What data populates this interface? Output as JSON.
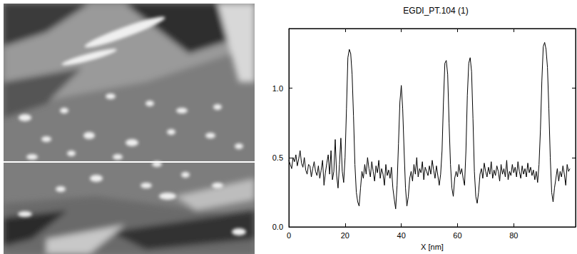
{
  "chart_data": {
    "type": "line",
    "title": "EGDI_PT.104 (1)",
    "xlabel": "X [nm]",
    "x": [
      0,
      0.5,
      1,
      1.5,
      2,
      2.5,
      3,
      3.5,
      4,
      4.5,
      5,
      5.5,
      6,
      6.5,
      7,
      7.5,
      8,
      8.5,
      9,
      9.5,
      10,
      10.5,
      11,
      11.5,
      12,
      12.5,
      13,
      13.5,
      14,
      14.5,
      15,
      15.5,
      16,
      16.5,
      17,
      17.5,
      18,
      18.5,
      19,
      19.5,
      20,
      20.5,
      21,
      21.5,
      22,
      22.5,
      23,
      23.5,
      24,
      24.5,
      25,
      25.5,
      26,
      26.5,
      27,
      27.5,
      28,
      28.5,
      29,
      29.5,
      30,
      30.5,
      31,
      31.5,
      32,
      32.5,
      33,
      33.5,
      34,
      34.5,
      35,
      35.5,
      36,
      36.5,
      37,
      37.5,
      38,
      38.5,
      39,
      39.5,
      40,
      40.5,
      41,
      41.5,
      42,
      42.5,
      43,
      43.5,
      44,
      44.5,
      45,
      45.5,
      46,
      46.5,
      47,
      47.5,
      48,
      48.5,
      49,
      49.5,
      50,
      50.5,
      51,
      51.5,
      52,
      52.5,
      53,
      53.5,
      54,
      54.5,
      55,
      55.5,
      56,
      56.5,
      57,
      57.5,
      58,
      58.5,
      59,
      59.5,
      60,
      60.5,
      61,
      61.5,
      62,
      62.5,
      63,
      63.5,
      64,
      64.5,
      65,
      65.5,
      66,
      66.5,
      67,
      67.5,
      68,
      68.5,
      69,
      69.5,
      70,
      70.5,
      71,
      71.5,
      72,
      72.5,
      73,
      73.5,
      74,
      74.5,
      75,
      75.5,
      76,
      76.5,
      77,
      77.5,
      78,
      78.5,
      79,
      79.5,
      80,
      80.5,
      81,
      81.5,
      82,
      82.5,
      83,
      83.5,
      84,
      84.5,
      85,
      85.5,
      86,
      86.5,
      87,
      87.5,
      88,
      88.5,
      89,
      89.5,
      90,
      90.5,
      91,
      91.5,
      92,
      92.5,
      93,
      93.5,
      94,
      94.5,
      95,
      95.5,
      96,
      96.5,
      97,
      97.5,
      98,
      98.5,
      99,
      99.5,
      100
    ],
    "values": [
      0.48,
      0.45,
      0.42,
      0.5,
      0.47,
      0.52,
      0.44,
      0.49,
      0.55,
      0.46,
      0.43,
      0.5,
      0.41,
      0.38,
      0.45,
      0.44,
      0.36,
      0.42,
      0.47,
      0.4,
      0.37,
      0.44,
      0.35,
      0.41,
      0.48,
      0.3,
      0.39,
      0.46,
      0.52,
      0.38,
      0.55,
      0.34,
      0.4,
      0.63,
      0.37,
      0.28,
      0.45,
      0.64,
      0.4,
      0.32,
      0.5,
      0.85,
      1.22,
      1.28,
      1.25,
      1.1,
      0.8,
      0.45,
      0.25,
      0.18,
      0.15,
      0.28,
      0.4,
      0.35,
      0.45,
      0.38,
      0.5,
      0.42,
      0.36,
      0.47,
      0.4,
      0.33,
      0.44,
      0.39,
      0.48,
      0.35,
      0.42,
      0.38,
      0.3,
      0.45,
      0.37,
      0.41,
      0.35,
      0.43,
      0.28,
      0.2,
      0.13,
      0.3,
      0.6,
      0.9,
      1.02,
      0.85,
      0.55,
      0.28,
      0.15,
      0.22,
      0.35,
      0.4,
      0.33,
      0.45,
      0.38,
      0.5,
      0.36,
      0.42,
      0.39,
      0.47,
      0.34,
      0.43,
      0.4,
      0.37,
      0.44,
      0.38,
      0.48,
      0.41,
      0.35,
      0.44,
      0.37,
      0.3,
      0.38,
      0.55,
      0.9,
      1.18,
      1.2,
      1.1,
      0.75,
      0.45,
      0.28,
      0.22,
      0.35,
      0.4,
      0.36,
      0.45,
      0.38,
      0.42,
      0.35,
      0.3,
      0.55,
      0.95,
      1.18,
      1.22,
      1.12,
      0.78,
      0.4,
      0.22,
      0.17,
      0.25,
      0.38,
      0.42,
      0.35,
      0.46,
      0.4,
      0.36,
      0.43,
      0.38,
      0.47,
      0.35,
      0.41,
      0.37,
      0.44,
      0.4,
      0.33,
      0.45,
      0.38,
      0.42,
      0.36,
      0.48,
      0.34,
      0.4,
      0.37,
      0.45,
      0.39,
      0.43,
      0.36,
      0.47,
      0.4,
      0.35,
      0.44,
      0.38,
      0.42,
      0.36,
      0.46,
      0.39,
      0.43,
      0.37,
      0.41,
      0.34,
      0.4,
      0.32,
      0.45,
      0.7,
      1.05,
      1.3,
      1.33,
      1.28,
      1.15,
      0.85,
      0.5,
      0.25,
      0.18,
      0.28,
      0.35,
      0.42,
      0.33,
      0.4,
      0.36,
      0.44,
      0.38,
      0.3,
      0.45,
      0.4,
      0.42
    ],
    "xlim": [
      0,
      102
    ],
    "ylim": [
      0,
      1.43
    ],
    "xticks": [
      0,
      20,
      40,
      60,
      80
    ],
    "yticks": [
      {
        "value": 0,
        "label": "0.0"
      },
      {
        "value": 0.5,
        "label": "0.5"
      },
      {
        "value": 1,
        "label": "1.0"
      }
    ],
    "color": "#000000",
    "grid": false
  }
}
